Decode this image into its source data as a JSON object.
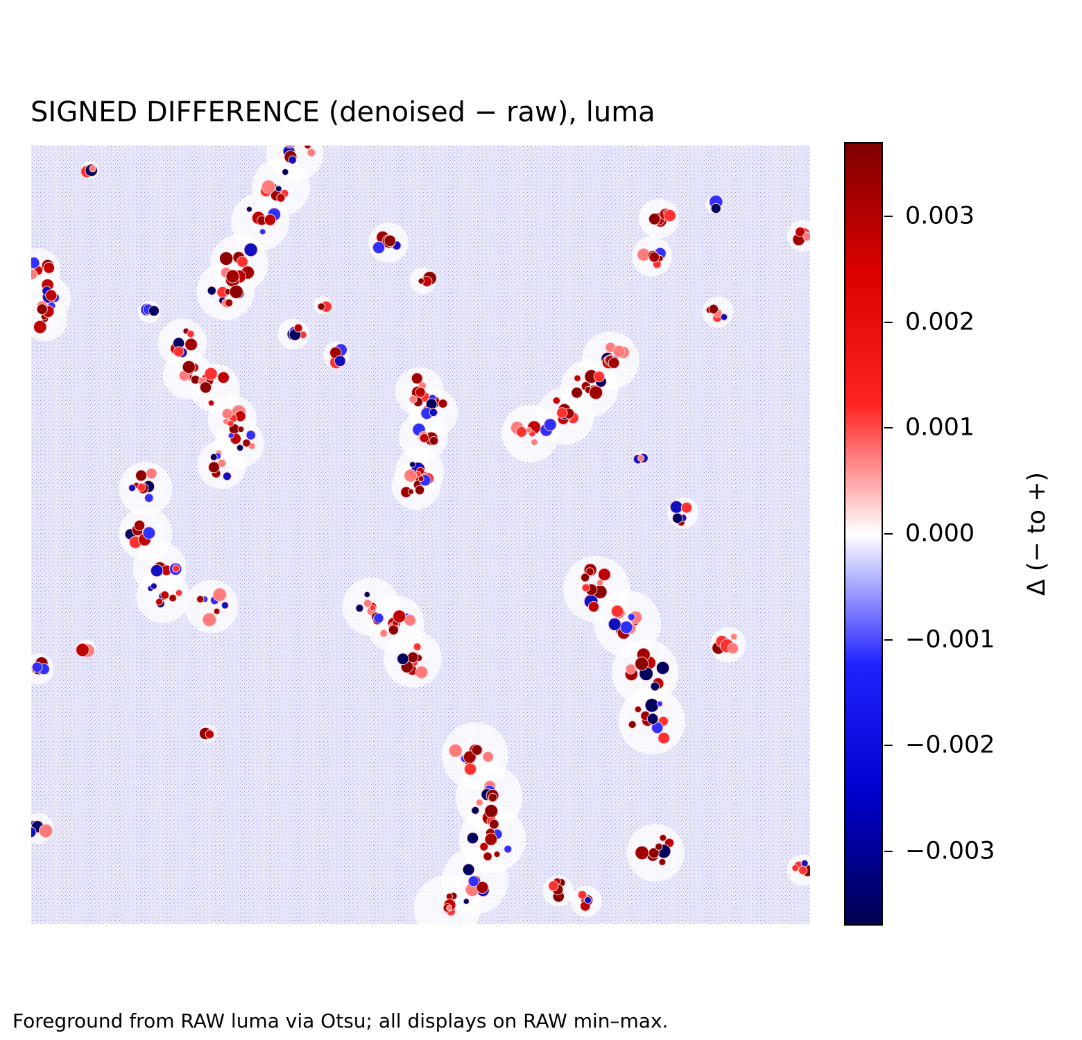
{
  "chart_data": {
    "type": "heatmap",
    "title": "SIGNED DIFFERENCE (denoised − raw), luma",
    "colormap": [
      "#000050",
      "#0000cd",
      "#2222ff",
      "#ffffff",
      "#ff2222",
      "#dd0000",
      "#800000"
    ],
    "colorbar": {
      "label": "Δ (− to +)",
      "range": [
        -0.0037,
        0.0037
      ],
      "ticks": [
        0.003,
        0.002,
        0.001,
        0.0,
        -0.001,
        -0.002,
        -0.003
      ],
      "tick_labels": [
        "0.003",
        "0.002",
        "0.001",
        "0.000",
        "−0.001",
        "−0.002",
        "−0.003"
      ]
    },
    "background_value": -0.0005,
    "axes_visible": false
  },
  "footer": "Foreground from RAW luma via Otsu; all displays on RAW min–max."
}
